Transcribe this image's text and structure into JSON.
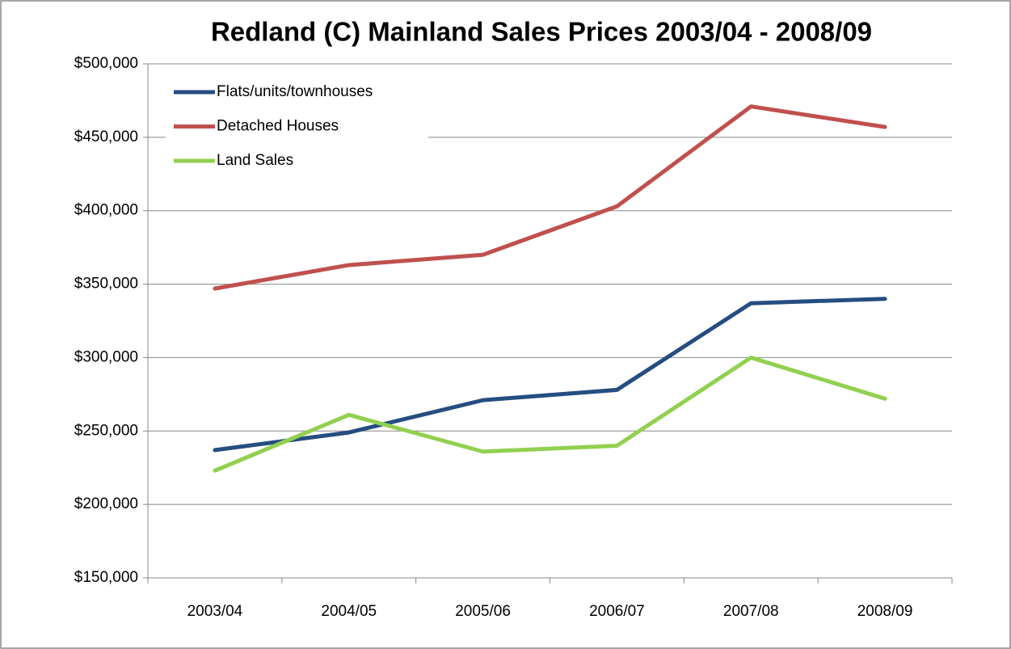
{
  "chart_data": {
    "type": "line",
    "title": "Redland (C) Mainland  Sales Prices 2003/04 - 2008/09",
    "categories": [
      "2003/04",
      "2004/05",
      "2005/06",
      "2006/07",
      "2007/08",
      "2008/09"
    ],
    "series": [
      {
        "name": "Flats/units/townhouses",
        "color": "#254d80",
        "values": [
          237000,
          249000,
          271000,
          278000,
          337000,
          340000
        ]
      },
      {
        "name": "Detached Houses",
        "color": "#c0504d",
        "values": [
          347000,
          363000,
          370000,
          403000,
          471000,
          457000
        ]
      },
      {
        "name": "Land Sales",
        "color": "#92d050",
        "values": [
          223000,
          261000,
          236000,
          240000,
          300000,
          272000
        ]
      }
    ],
    "ylim": [
      150000,
      500000
    ],
    "yticks": [
      {
        "value": 150000,
        "label": "$150,000"
      },
      {
        "value": 200000,
        "label": "$200,000"
      },
      {
        "value": 250000,
        "label": "$250,000"
      },
      {
        "value": 300000,
        "label": "$300,000"
      },
      {
        "value": 350000,
        "label": "$350,000"
      },
      {
        "value": 400000,
        "label": "$400,000"
      },
      {
        "value": 450000,
        "label": "$450,000"
      },
      {
        "value": 500000,
        "label": "$500,000"
      }
    ],
    "grid": true,
    "legend": "upper-left"
  }
}
